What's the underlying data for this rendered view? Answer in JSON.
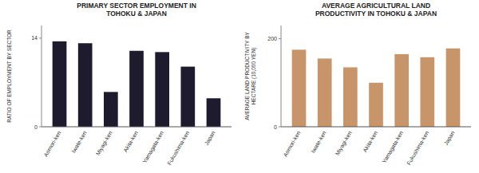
{
  "chart_data": [
    {
      "type": "bar",
      "title": "PRIMARY SECTOR EMPLOYMENT IN\nTOHOKU & JAPAN",
      "ylabel": "RATIO OF EMPLOYMENT BY SECTOR",
      "categories": [
        "Aomori-ken",
        "Iwate-ken",
        "Miyagi-ken",
        "Akita-ken",
        "Yamagata-ken",
        "Fukushima-ken",
        "Japan"
      ],
      "values": [
        13.5,
        13.2,
        5.5,
        12.0,
        11.8,
        9.5,
        4.5
      ],
      "color": "#1e1b2e",
      "ylim": [
        0,
        16
      ],
      "yticks": [
        0,
        14
      ]
    },
    {
      "type": "bar",
      "title": "AVERAGE AGRICULTURAL LAND\nPRODUCTIVITY IN TOHOKU & JAPAN",
      "ylabel": "AVERAGE LAND PRODUCTIVITY BY\nHECTARE (10,000 YEN)",
      "categories": [
        "Aomori-ken",
        "Iwate-ken",
        "Miyagi-ken",
        "Akita-ken",
        "Yamagata-ken",
        "Fukushima-ken",
        "Japan"
      ],
      "values": [
        175,
        155,
        135,
        100,
        165,
        158,
        178
      ],
      "color": "#c8956b",
      "ylim": [
        0,
        230
      ],
      "yticks": [
        0,
        200
      ]
    }
  ]
}
